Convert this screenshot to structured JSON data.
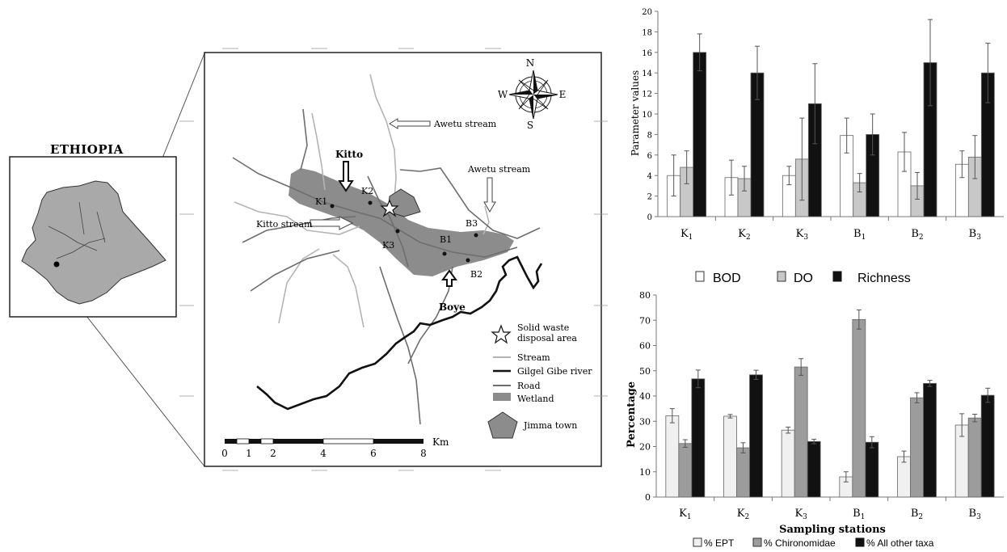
{
  "inset": {
    "country_label": "ETHIOPIA"
  },
  "map": {
    "compass": {
      "n": "N",
      "s": "S",
      "e": "E",
      "w": "W"
    },
    "stream_labels": {
      "awetu_top": "Awetu stream",
      "awetu_right": "Awetu stream",
      "kitto": "Kitto stream"
    },
    "place_labels": {
      "kitto": "Kitto",
      "boye": "Boye"
    },
    "stations": [
      "K1",
      "K2",
      "K3",
      "B1",
      "B2",
      "B3"
    ],
    "legend": {
      "waste": "Solid waste disposal area",
      "stream": "Stream",
      "river": "Gilgel Gibe river",
      "road": "Road",
      "wetland": "Wetland",
      "town": "Jimma town"
    },
    "scale": {
      "ticks": [
        "0",
        "1",
        "2",
        "4",
        "6",
        "8"
      ],
      "unit": "Km"
    },
    "colors": {
      "wetland": "#8c8c8c",
      "stream": "#b4b4b4",
      "road": "#6e6e6e",
      "river": "#111111"
    }
  },
  "chart_data": [
    {
      "type": "bar",
      "categories": [
        "K1",
        "K2",
        "K3",
        "B1",
        "B2",
        "B3"
      ],
      "ylabel": "Parameter values",
      "xlabel": "",
      "ylim": [
        0,
        20
      ],
      "yticks": [
        0,
        2,
        4,
        6,
        8,
        10,
        12,
        14,
        16,
        18,
        20
      ],
      "grid": false,
      "legend_position": "bottom",
      "series": [
        {
          "name": "BOD",
          "color": "#ffffff",
          "values": [
            4.0,
            3.8,
            4.0,
            7.9,
            6.3,
            5.1
          ],
          "errors": [
            2.0,
            1.7,
            0.9,
            1.7,
            1.9,
            1.3
          ]
        },
        {
          "name": "DO",
          "color": "#c8c8c8",
          "values": [
            4.8,
            3.7,
            5.6,
            3.3,
            3.0,
            5.8
          ],
          "errors": [
            1.6,
            1.2,
            4.0,
            0.9,
            1.3,
            2.1
          ]
        },
        {
          "name": "Richness",
          "color": "#111111",
          "values": [
            16.0,
            14.0,
            11.0,
            8.0,
            15.0,
            14.0
          ],
          "errors": [
            1.8,
            2.6,
            3.9,
            2.0,
            4.2,
            2.9
          ]
        }
      ]
    },
    {
      "type": "bar",
      "categories": [
        "K1",
        "K2",
        "K3",
        "B1",
        "B2",
        "B3"
      ],
      "ylabel": "Percentage",
      "xlabel": "Sampling stations",
      "ylim": [
        0,
        80
      ],
      "yticks": [
        0,
        10,
        20,
        30,
        40,
        50,
        60,
        70,
        80
      ],
      "grid": false,
      "legend_position": "bottom",
      "series": [
        {
          "name": "% EPT",
          "color": "#f0f0f0",
          "values": [
            32.2,
            32.0,
            26.5,
            8.0,
            16.0,
            28.5
          ],
          "errors": [
            2.8,
            0.7,
            1.2,
            2.0,
            2.2,
            4.5
          ]
        },
        {
          "name": "% Chironomidae",
          "color": "#9c9c9c",
          "values": [
            21.2,
            19.5,
            51.5,
            70.3,
            39.3,
            31.3
          ],
          "errors": [
            1.5,
            2.0,
            3.3,
            3.8,
            2.0,
            1.5
          ]
        },
        {
          "name": "% All other taxa",
          "color": "#111111",
          "values": [
            46.8,
            48.4,
            22.0,
            21.7,
            45.0,
            40.3
          ],
          "errors": [
            3.5,
            1.8,
            0.9,
            2.2,
            1.2,
            2.8
          ]
        }
      ]
    }
  ]
}
